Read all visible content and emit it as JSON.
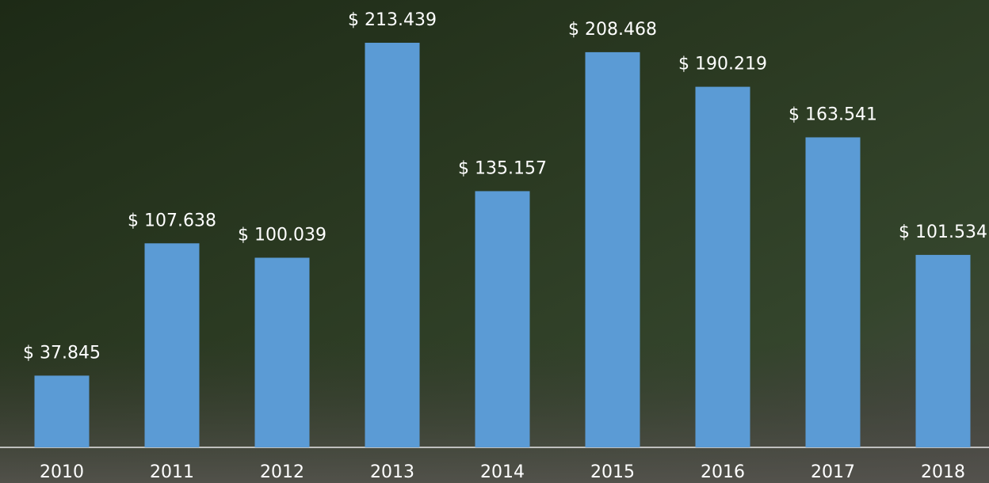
{
  "chart_data": {
    "type": "bar",
    "categories": [
      "2010",
      "2011",
      "2012",
      "2013",
      "2014",
      "2015",
      "2016",
      "2017",
      "2018"
    ],
    "values": [
      37845,
      107638,
      100039,
      213439,
      135157,
      208468,
      190219,
      163541,
      101534
    ],
    "value_labels": [
      "$ 37.845",
      "$ 107.638",
      "$ 100.039",
      "$ 213.439",
      "$ 135.157",
      "$ 208.468",
      "$ 190.219",
      "$ 163.541",
      "$ 101.534"
    ],
    "color": "#5b9bd5"
  }
}
